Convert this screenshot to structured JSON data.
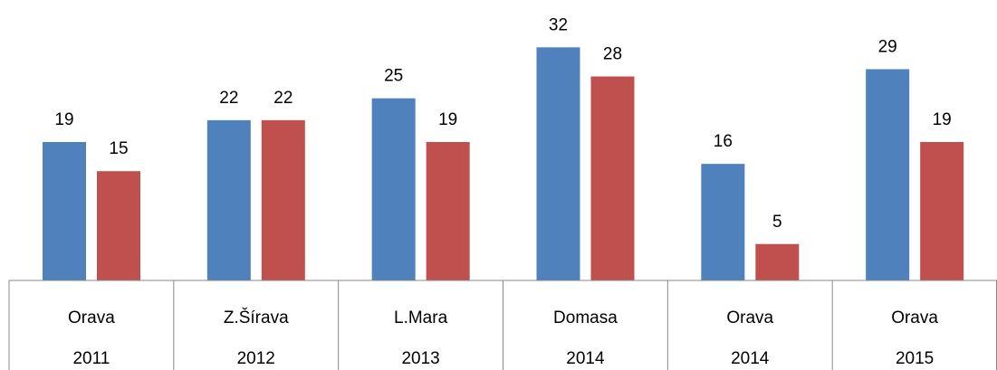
{
  "chart_data": {
    "type": "bar",
    "categories": [
      {
        "label": "Orava",
        "year": "2011"
      },
      {
        "label": "Z.Šírava",
        "year": "2012"
      },
      {
        "label": "L.Mara",
        "year": "2013"
      },
      {
        "label": "Domasa",
        "year": "2014"
      },
      {
        "label": "Orava",
        "year": "2014"
      },
      {
        "label": "Orava",
        "year": "2015"
      }
    ],
    "series": [
      {
        "color": "#4f81bd",
        "values": [
          19,
          22,
          25,
          32,
          16,
          29
        ]
      },
      {
        "color": "#c0504d",
        "values": [
          15,
          22,
          19,
          28,
          5,
          19
        ]
      }
    ],
    "ylim": [
      0,
      38
    ]
  }
}
